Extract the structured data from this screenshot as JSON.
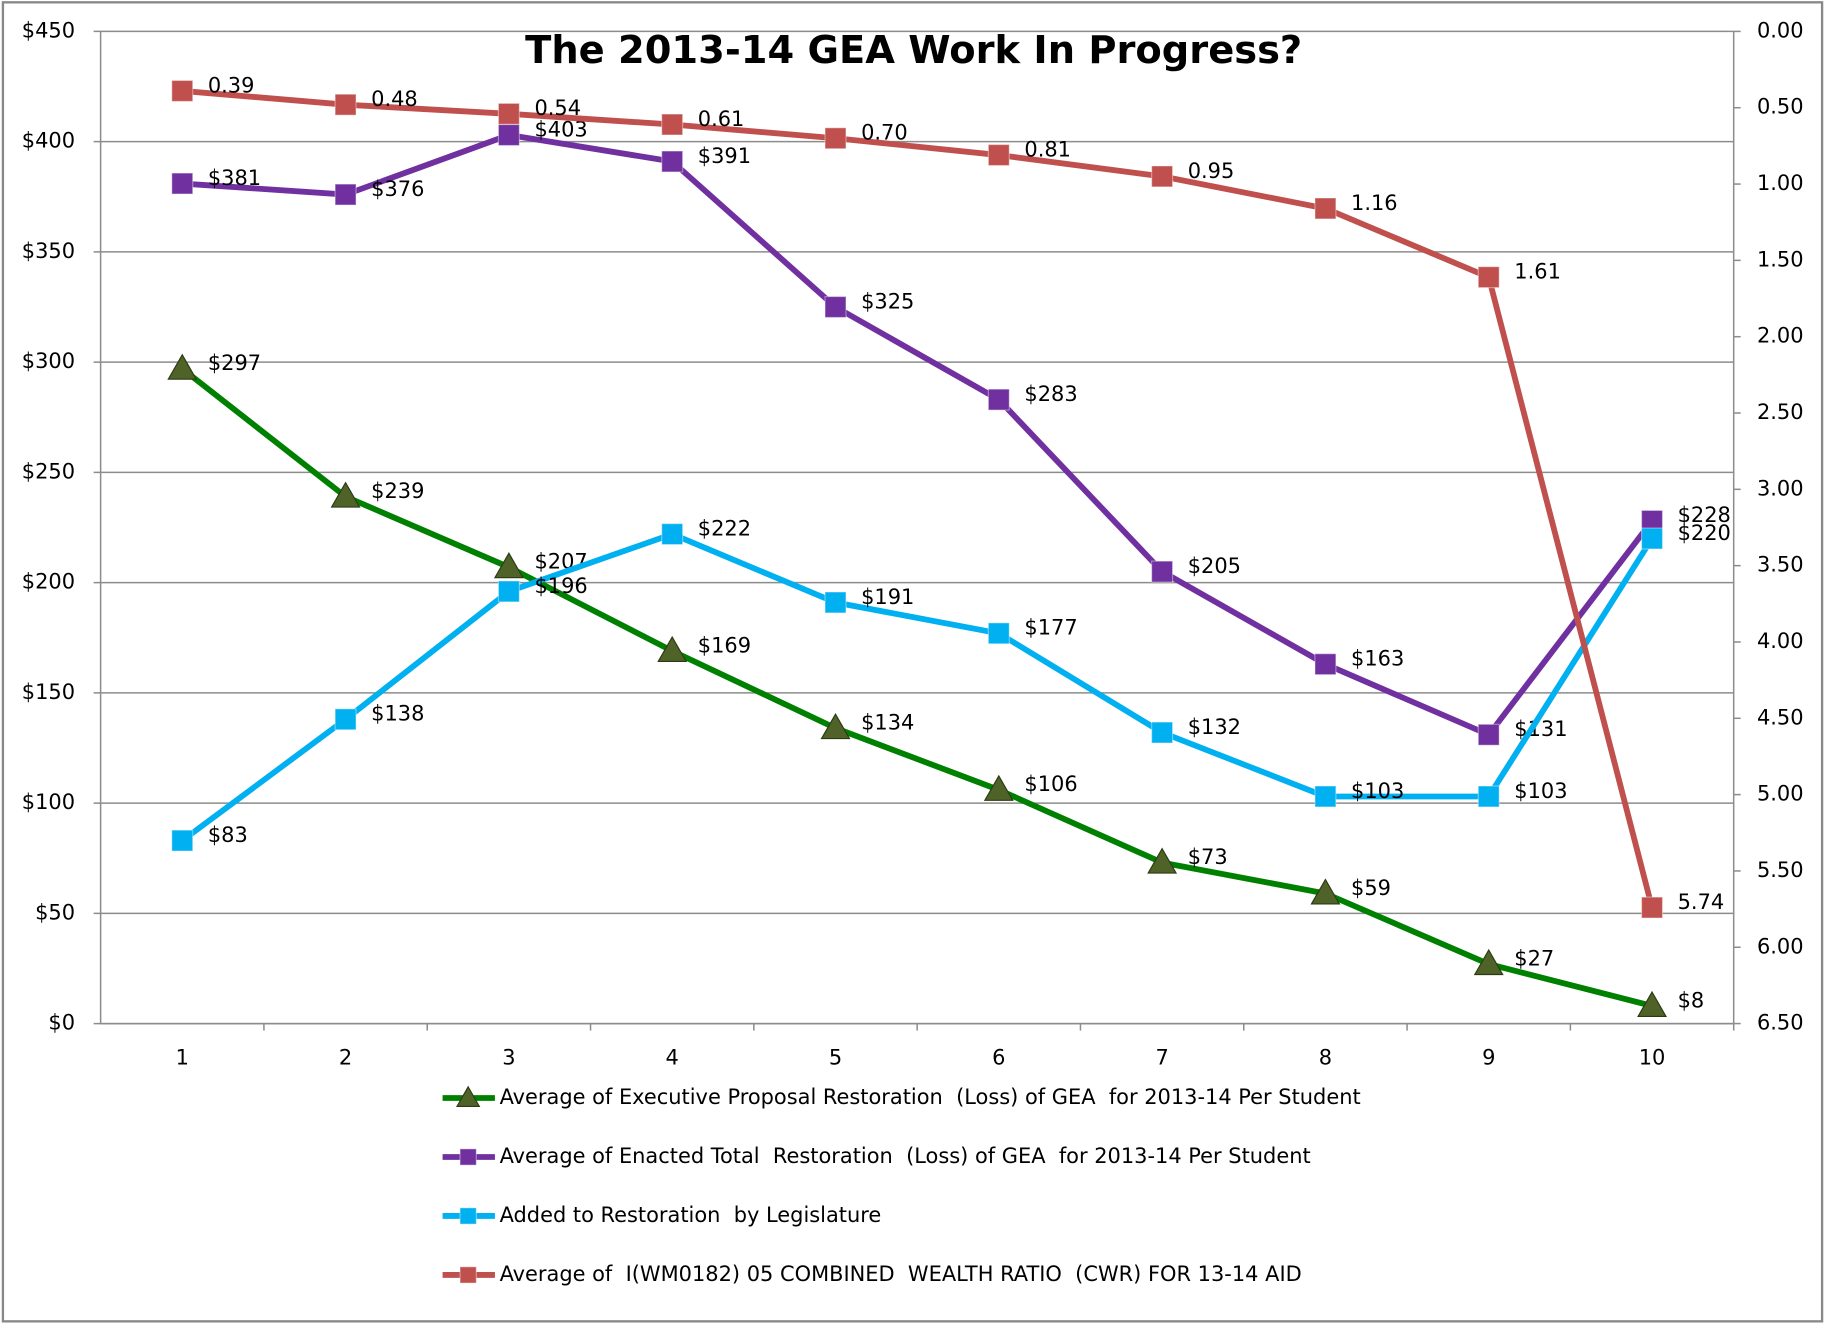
{
  "chart_data": {
    "type": "line",
    "title": "The 2013-14 GEA Work In Progress?",
    "categories": [
      1,
      2,
      3,
      4,
      5,
      6,
      7,
      8,
      9,
      10
    ],
    "ylim": [
      0,
      450
    ],
    "yticks": [
      {
        "value": 0,
        "label": "$0"
      },
      {
        "value": 50,
        "label": "$50"
      },
      {
        "value": 100,
        "label": "$100"
      },
      {
        "value": 150,
        "label": "$150"
      },
      {
        "value": 200,
        "label": "$200"
      },
      {
        "value": 250,
        "label": "$250"
      },
      {
        "value": 300,
        "label": "$300"
      },
      {
        "value": 350,
        "label": "$350"
      },
      {
        "value": 400,
        "label": "$400"
      },
      {
        "value": 450,
        "label": "$450"
      }
    ],
    "y2lim": [
      6.5,
      0
    ],
    "y2ticks": [
      {
        "value": 0,
        "label": "0.00"
      },
      {
        "value": 0.5,
        "label": "0.50"
      },
      {
        "value": 1,
        "label": "1.00"
      },
      {
        "value": 1.5,
        "label": "1.50"
      },
      {
        "value": 2,
        "label": "2.00"
      },
      {
        "value": 2.5,
        "label": "2.50"
      },
      {
        "value": 3,
        "label": "3.00"
      },
      {
        "value": 3.5,
        "label": "3.50"
      },
      {
        "value": 4,
        "label": "4.00"
      },
      {
        "value": 4.5,
        "label": "4.50"
      },
      {
        "value": 5,
        "label": "5.00"
      },
      {
        "value": 5.5,
        "label": "5.50"
      },
      {
        "value": 6,
        "label": "6.00"
      },
      {
        "value": 6.5,
        "label": "6.50"
      }
    ],
    "grid": true,
    "legend": "bottom",
    "series": [
      {
        "name": "Average of Executive Proposal Restoration  (Loss) of GEA  for 2013-14 Per Student",
        "color": "#008000",
        "marker": "triangle",
        "marker_color": "#4f6228",
        "values": [
          297,
          239,
          207,
          169,
          134,
          106,
          73,
          59,
          27,
          8
        ],
        "value_labels": [
          "$297",
          "$239",
          "$207",
          "$169",
          "$134",
          "$106",
          "$73",
          "$59",
          "$27",
          "$8"
        ]
      },
      {
        "name": "Average of Enacted Total  Restoration  (Loss) of GEA  for 2013-14 Per Student",
        "color": "#7030a0",
        "marker": "square",
        "marker_color": "#7030a0",
        "values": [
          381,
          376,
          403,
          391,
          325,
          283,
          205,
          163,
          131,
          228
        ],
        "value_labels": [
          "$381",
          "$376",
          "$403",
          "$391",
          "$325",
          "$283",
          "$205",
          "$163",
          "$131",
          "$228"
        ]
      },
      {
        "name": "Added to Restoration  by Legislature",
        "color": "#00b0f0",
        "marker": "square",
        "marker_color": "#00b0f0",
        "values": [
          83,
          138,
          196,
          222,
          191,
          177,
          132,
          103,
          103,
          220
        ],
        "value_labels": [
          "$83",
          "$138",
          "$196",
          "$222",
          "$191",
          "$177",
          "$132",
          "$103",
          "$103",
          "$220"
        ]
      },
      {
        "name": "Average of  I(WM0182) 05 COMBINED  WEALTH RATIO  (CWR) FOR 13-14 AID",
        "color": "#c0504d",
        "marker": "square",
        "marker_color": "#c0504d",
        "axis": "y2",
        "values": [
          0.39,
          0.48,
          0.54,
          0.61,
          0.7,
          0.81,
          0.95,
          1.16,
          1.61,
          5.74
        ],
        "value_labels": [
          "0.39",
          "0.48",
          "0.54",
          "0.61",
          "0.70",
          "0.81",
          "0.95",
          "1.16",
          "1.61",
          "5.74"
        ]
      }
    ]
  }
}
